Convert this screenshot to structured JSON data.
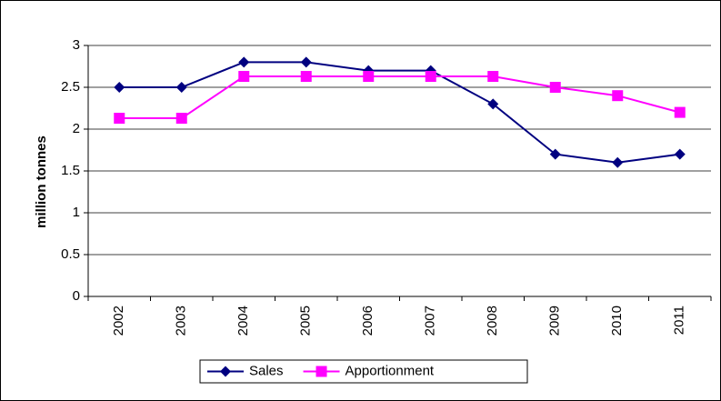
{
  "chart_data": {
    "type": "line",
    "y_label": "million tonnes",
    "categories": [
      "2002",
      "2003",
      "2004",
      "2005",
      "2006",
      "2007",
      "2008",
      "2009",
      "2010",
      "2011"
    ],
    "series": [
      {
        "name": "Sales",
        "color": "#000080",
        "marker": "diamond",
        "values": [
          2.5,
          2.5,
          2.8,
          2.8,
          2.7,
          2.7,
          2.3,
          1.7,
          1.6,
          1.7
        ]
      },
      {
        "name": "Apportionment",
        "color": "#ff00ff",
        "marker": "square",
        "values": [
          2.13,
          2.13,
          2.63,
          2.63,
          2.63,
          2.63,
          2.63,
          2.5,
          2.4,
          2.2
        ]
      }
    ],
    "ylim": [
      0,
      3
    ],
    "yticks": [
      0,
      0.5,
      1,
      1.5,
      2,
      2.5,
      3
    ],
    "grid": true,
    "legend": "bottom"
  }
}
